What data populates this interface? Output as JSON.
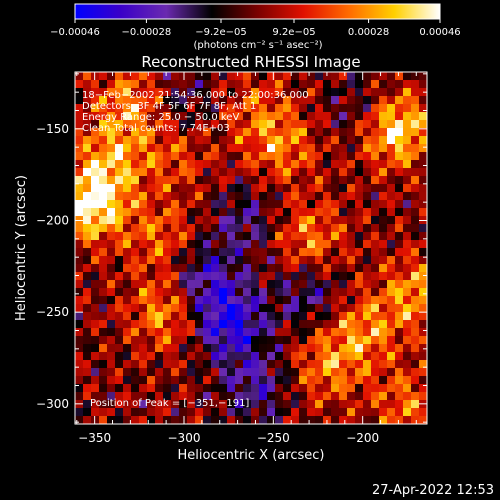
{
  "chart_data": {
    "type": "heatmap",
    "title": "Reconstructed RHESSI Image",
    "xlabel": "Heliocentric X (arcsec)",
    "ylabel": "Heliocentric Y (arcsec)",
    "xlim": [
      -361,
      -164
    ],
    "ylim": [
      -311,
      -119
    ],
    "x_ticks": [
      {
        "value": -350,
        "label": "−350"
      },
      {
        "value": -300,
        "label": "−300"
      },
      {
        "value": -250,
        "label": "−250"
      },
      {
        "value": -200,
        "label": "−200"
      }
    ],
    "y_ticks": [
      {
        "value": -150,
        "label": "−150"
      },
      {
        "value": -200,
        "label": "−200"
      },
      {
        "value": -250,
        "label": "−250"
      },
      {
        "value": -300,
        "label": "−300"
      }
    ],
    "colorbar": {
      "range": [
        -0.00046,
        0.00046
      ],
      "ticks": [
        {
          "value": -0.00046,
          "label": "−0.00046"
        },
        {
          "value": -0.00028,
          "label": "−0.00028"
        },
        {
          "value": -9.2e-05,
          "label": "−9.2e−05"
        },
        {
          "value": 9.2e-05,
          "label": "9.2e−05"
        },
        {
          "value": 0.00028,
          "label": "0.00028"
        },
        {
          "value": 0.00046,
          "label": "0.00046"
        }
      ],
      "unit_label": "(photons cm⁻² s⁻¹ asec⁻²)",
      "colors": [
        "#0000ff",
        "#3a00c8",
        "#6a2ab0",
        "#000000",
        "#7a0000",
        "#e01000",
        "#ff6a00",
        "#ffd000",
        "#ffffff"
      ]
    },
    "annotations": [
      "18−Feb−2002 21:54:36.000 to 22:00:36.000",
      "Detectors: 3F 4F 5F 6F 7F 8F, Att 1",
      "Energy Range: 25.0 − 50.0 keV",
      "Clean     Total counts: 7.74E+03"
    ],
    "peak_label": "Position of Peak = [−351,−191]",
    "peak": {
      "x": -351,
      "y": -191
    },
    "hot_spots": [
      {
        "x": -351,
        "y": -191,
        "v": 1.0
      },
      {
        "x": -340,
        "y": -165,
        "v": 0.55
      },
      {
        "x": -330,
        "y": -135,
        "v": 0.55
      },
      {
        "x": -310,
        "y": -250,
        "v": 0.6
      },
      {
        "x": -312,
        "y": -210,
        "v": 0.45
      },
      {
        "x": -305,
        "y": -165,
        "v": 0.35
      },
      {
        "x": -245,
        "y": -160,
        "v": 0.5
      },
      {
        "x": -230,
        "y": -210,
        "v": 0.55
      },
      {
        "x": -220,
        "y": -280,
        "v": 0.5
      },
      {
        "x": -200,
        "y": -260,
        "v": 0.55
      },
      {
        "x": -182,
        "y": -150,
        "v": 0.95
      },
      {
        "x": -170,
        "y": -240,
        "v": 0.6
      },
      {
        "x": -175,
        "y": -300,
        "v": 0.45
      },
      {
        "x": -260,
        "y": -140,
        "v": 0.35
      }
    ],
    "cold_spots": [
      {
        "x": -275,
        "y": -255,
        "v": -0.85
      },
      {
        "x": -290,
        "y": -230,
        "v": -0.55
      },
      {
        "x": -265,
        "y": -200,
        "v": -0.4
      },
      {
        "x": -230,
        "y": -240,
        "v": -0.45
      },
      {
        "x": -260,
        "y": -290,
        "v": -0.5
      },
      {
        "x": -300,
        "y": -135,
        "v": -0.3
      },
      {
        "x": -200,
        "y": -140,
        "v": -0.35
      }
    ]
  },
  "timestamp": "27-Apr-2022 12:53"
}
